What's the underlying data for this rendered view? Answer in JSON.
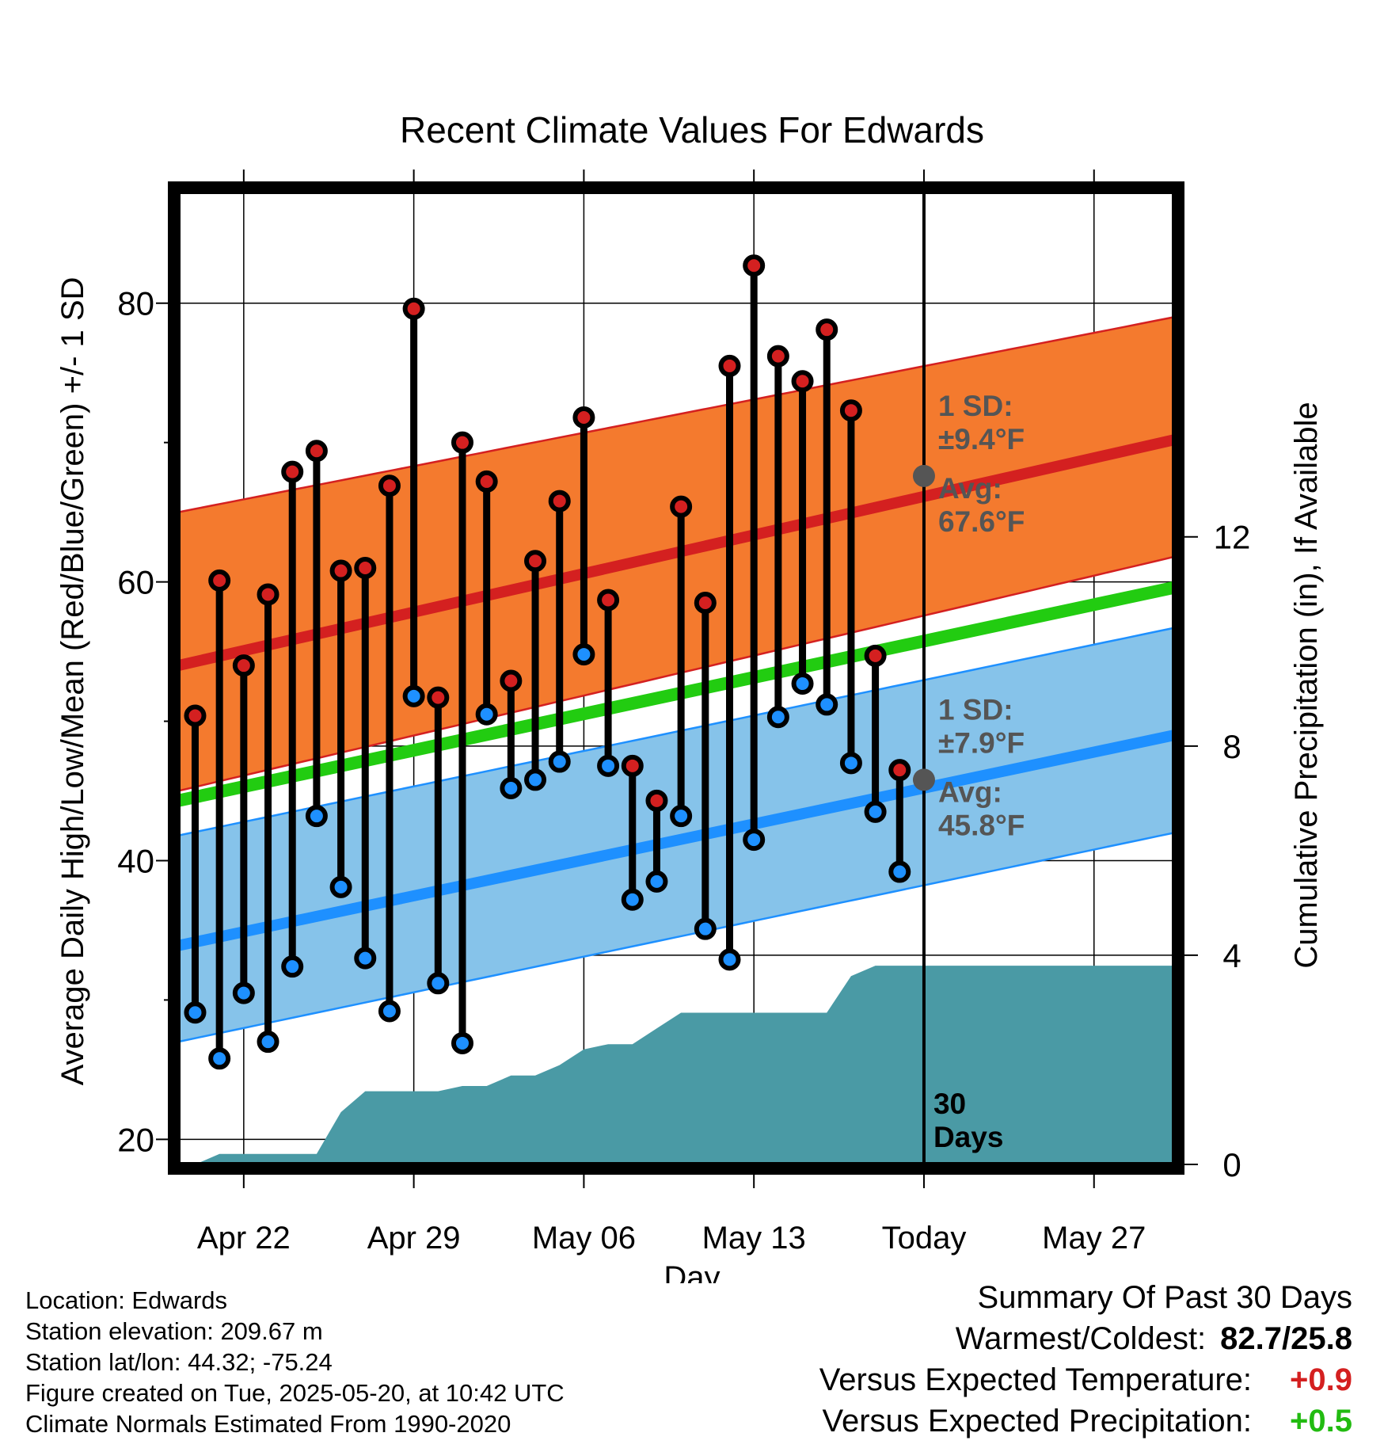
{
  "chart_data": {
    "type": "line",
    "title": "Recent Climate Values For Edwards",
    "xlabel": "Day",
    "ylabel_left": "Average Daily High/Low/Mean (Red/Blue/Green) +/- 1 SD",
    "ylabel_right": "Cumulative Precipitation (in), If Available",
    "x_range_days": [
      19.3,
      60.3
    ],
    "ylim_left": [
      18.2,
      88
    ],
    "ylim_right": [
      0,
      18.6
    ],
    "x_ticks": [
      {
        "day": 22,
        "label": "Apr 22"
      },
      {
        "day": 29,
        "label": "Apr 29"
      },
      {
        "day": 36,
        "label": "May 06"
      },
      {
        "day": 43,
        "label": "May 13"
      },
      {
        "day": 50,
        "label": "Today"
      },
      {
        "day": 57,
        "label": "May 27"
      }
    ],
    "y_ticks_left": [
      20,
      40,
      60,
      80
    ],
    "y_minor_ticks_left": [
      30,
      50,
      70
    ],
    "y_ticks_right": [
      0,
      4,
      8,
      12
    ],
    "grid": true,
    "today_day": 50,
    "days": [
      20,
      21,
      22,
      23,
      24,
      25,
      26,
      27,
      28,
      29,
      30,
      31,
      32,
      33,
      34,
      35,
      36,
      37,
      38,
      39,
      40,
      41,
      42,
      43,
      44,
      45,
      46,
      47,
      48,
      49
    ],
    "series": [
      {
        "name": "High",
        "color": "#d42020",
        "values": [
          50.4,
          60.1,
          54.0,
          59.1,
          67.9,
          69.4,
          60.8,
          61.0,
          66.9,
          79.6,
          51.7,
          70.0,
          67.2,
          52.9,
          61.5,
          65.8,
          71.8,
          58.7,
          46.8,
          44.3,
          65.4,
          58.5,
          75.5,
          82.7,
          76.2,
          74.4,
          78.1,
          72.3,
          54.7,
          46.5
        ]
      },
      {
        "name": "Low",
        "color": "#1e90ff",
        "values": [
          29.1,
          25.8,
          30.5,
          27.0,
          32.4,
          43.2,
          38.1,
          33.0,
          29.2,
          51.8,
          31.2,
          26.9,
          50.5,
          45.2,
          45.8,
          47.1,
          54.8,
          46.8,
          37.2,
          38.5,
          43.2,
          35.1,
          32.9,
          41.5,
          50.3,
          52.7,
          51.2,
          47.0,
          43.5,
          39.2
        ]
      }
    ],
    "normals": {
      "high_avg": [
        54.0,
        70.2
      ],
      "high_sd_upper": [
        65.0,
        79.0
      ],
      "high_sd_lower": [
        45.0,
        61.8
      ],
      "mean_avg": [
        44.3,
        59.6
      ],
      "low_avg": [
        33.9,
        49.0
      ],
      "low_sd_upper": [
        41.8,
        56.7
      ],
      "low_sd_lower": [
        27.0,
        42.0
      ]
    },
    "precip_cumulative": {
      "day": [
        20,
        21,
        22,
        23,
        24,
        25,
        26,
        27,
        28,
        29,
        30,
        31,
        32,
        33,
        34,
        35,
        36,
        37,
        38,
        39,
        40,
        41,
        42,
        43,
        44,
        45,
        46,
        47,
        48,
        60.3
      ],
      "values": [
        0,
        0.2,
        0.2,
        0.2,
        0.2,
        0.2,
        1.0,
        1.4,
        1.4,
        1.4,
        1.4,
        1.5,
        1.5,
        1.7,
        1.7,
        1.9,
        2.2,
        2.3,
        2.3,
        2.6,
        2.9,
        2.9,
        2.9,
        2.9,
        2.9,
        2.9,
        2.9,
        3.6,
        3.8,
        3.8
      ]
    },
    "annotations": {
      "high_sd_label": "1 SD:",
      "high_sd_value": "±9.4°F",
      "high_avg_label": "Avg:",
      "high_avg_value": "67.6°F",
      "high_avg_today": 67.6,
      "low_sd_label": "1 SD:",
      "low_sd_value": "±7.9°F",
      "low_avg_label": "Avg:",
      "low_avg_value": "45.8°F",
      "low_avg_today": 45.8,
      "days_number": "30",
      "days_word": "Days"
    },
    "colors": {
      "high_band": "#f47a2e",
      "high_line": "#d42020",
      "low_band": "#86c3ea",
      "low_line": "#1e90ff",
      "mean_line": "#22cc11",
      "precip": "#4a9aa5",
      "annotation": "#555555"
    }
  },
  "info": {
    "location": "Location: Edwards",
    "elevation": "Station elevation: 209.67 m",
    "latlon": "Station lat/lon: 44.32; -75.24",
    "created": "Figure created on Tue, 2025-05-20, at 10:42 UTC",
    "normals": "Climate Normals Estimated From 1990-2020"
  },
  "summary": {
    "heading": "Summary Of Past 30 Days",
    "warmest_coldest_label": "Warmest/Coldest:",
    "warmest_coldest_value": "82.7/25.8",
    "temp_label": "Versus Expected Temperature:",
    "temp_value": "+0.9",
    "temp_color": "#d42020",
    "precip_label": "Versus Expected Precipitation:",
    "precip_value": "+0.5",
    "precip_color": "#22bb11"
  }
}
